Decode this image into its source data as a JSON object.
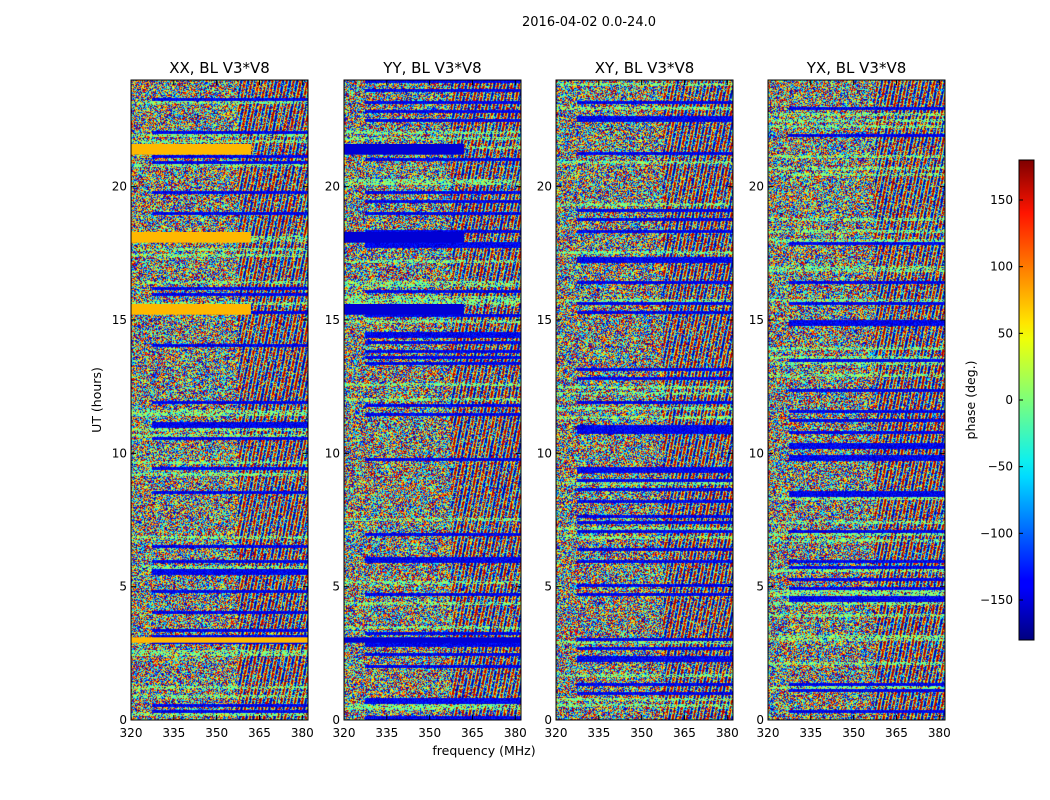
{
  "figure": {
    "suptitle": "2016-04-02 0.0-24.0"
  },
  "colorbar": {
    "label": "phase (deg.)",
    "ticks": [
      150,
      100,
      50,
      0,
      -50,
      -100,
      -150
    ],
    "range": [
      -180,
      180
    ],
    "colormap": "jet"
  },
  "chart_data": {
    "type": "heatmap",
    "xlabel": "frequency (MHz)",
    "ylabel": "UT (hours)",
    "xlim": [
      320,
      382
    ],
    "ylim": [
      0,
      24
    ],
    "xticks": [
      320,
      335,
      350,
      365,
      380
    ],
    "yticks": [
      0,
      5,
      10,
      15,
      20
    ],
    "value_label": "phase (deg.)",
    "value_range": [
      -180,
      180
    ],
    "panels": [
      {
        "title": "XX, BL V3*V8",
        "polarization": "XX",
        "baseline": "V3*V8"
      },
      {
        "title": "YY, BL V3*V8",
        "polarization": "YY",
        "baseline": "V3*V8"
      },
      {
        "title": "XY, BL V3*V8",
        "polarization": "XY",
        "baseline": "V3*V8"
      },
      {
        "title": "YX, BL V3*V8",
        "polarization": "YX",
        "baseline": "V3*V8"
      }
    ],
    "flat_phase_bands": [
      {
        "ut": [
          21.2,
          21.6
        ],
        "freq": [
          320,
          362
        ],
        "phase": {
          "XX": 70,
          "YY": -150
        }
      },
      {
        "ut": [
          17.9,
          18.3
        ],
        "freq": [
          320,
          362
        ],
        "phase": {
          "XX": 70,
          "YY": -150
        }
      },
      {
        "ut": [
          15.2,
          15.6
        ],
        "freq": [
          320,
          362
        ],
        "phase": {
          "XX": 70,
          "YY": -150
        }
      },
      {
        "ut": [
          2.9,
          3.1
        ],
        "freq": [
          320,
          382
        ],
        "phase": {
          "XX": 70,
          "YY": -150
        }
      }
    ]
  }
}
